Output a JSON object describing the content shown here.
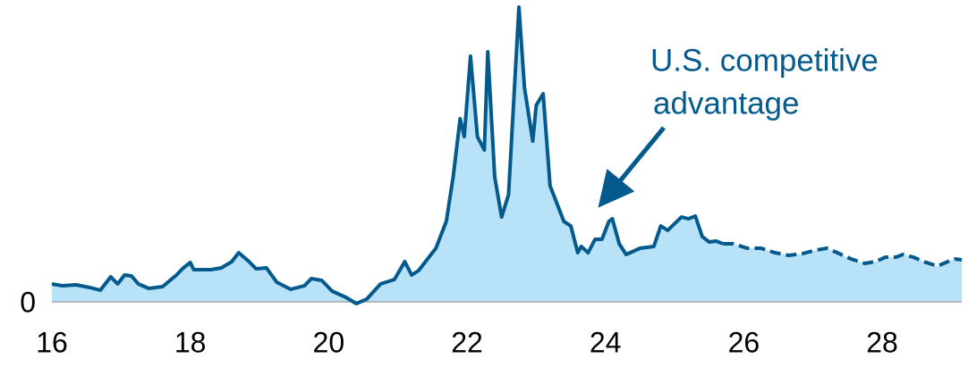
{
  "chart_data": {
    "type": "area",
    "annotation": [
      "U.S. competitive",
      "advantage"
    ],
    "xlim": [
      16,
      29.15
    ],
    "xticks": [
      16,
      18,
      20,
      22,
      24,
      26,
      28
    ],
    "ylim": [
      0,
      33
    ],
    "yticks": [
      0
    ],
    "line_color": "#045a8d",
    "fill_color": "#b8e2f8",
    "series": [
      {
        "color": "#045a8d",
        "dashed": false,
        "x": [
          16.0,
          16.15,
          16.35,
          16.55,
          16.7,
          16.85,
          16.95,
          17.05,
          17.15,
          17.25,
          17.4,
          17.6,
          17.8,
          17.9,
          18.0,
          18.05,
          18.3,
          18.45,
          18.6,
          18.7,
          18.85,
          18.95,
          19.1,
          19.25,
          19.45,
          19.65,
          19.75,
          19.9,
          20.05,
          20.25,
          20.4,
          20.55,
          20.75,
          20.95,
          21.1,
          21.2,
          21.3,
          21.45,
          21.55,
          21.7,
          21.8,
          21.9,
          21.96,
          22.05,
          22.15,
          22.25,
          22.3,
          22.4,
          22.5,
          22.6,
          22.75,
          22.83,
          22.95,
          23.0,
          23.1,
          23.2,
          23.4,
          23.5,
          23.6,
          23.65,
          23.75,
          23.85,
          23.95,
          24.05,
          24.1,
          24.2,
          24.3,
          24.5,
          24.7,
          24.8,
          24.9,
          25.1,
          25.2,
          25.3,
          25.4,
          25.5,
          25.6,
          25.7
        ],
        "values": [
          2.0,
          1.8,
          1.9,
          1.6,
          1.3,
          2.8,
          2.0,
          3.0,
          2.9,
          2.0,
          1.5,
          1.7,
          3.0,
          3.8,
          4.4,
          3.6,
          3.6,
          3.8,
          4.5,
          5.5,
          4.5,
          3.7,
          3.8,
          2.2,
          1.4,
          1.8,
          2.6,
          2.4,
          1.2,
          0.5,
          -0.2,
          0.3,
          2.0,
          2.5,
          4.5,
          3.0,
          3.5,
          5.0,
          6.0,
          9.0,
          14.0,
          20.5,
          18.5,
          27.5,
          18.5,
          17.0,
          28.0,
          14.0,
          9.5,
          12.0,
          33.0,
          24.0,
          18.0,
          22.0,
          23.3,
          13.0,
          9.0,
          8.5,
          5.5,
          6.2,
          5.5,
          7.0,
          7.0,
          9.0,
          9.3,
          6.5,
          5.3,
          6.0,
          6.2,
          8.5,
          8.0,
          9.5,
          9.3,
          9.6,
          7.3,
          6.7,
          6.8,
          6.5
        ]
      },
      {
        "color": "#045a8d",
        "dashed": true,
        "x": [
          25.7,
          25.85,
          26.05,
          26.25,
          26.45,
          26.65,
          26.85,
          27.05,
          27.2,
          27.35,
          27.55,
          27.75,
          27.9,
          28.05,
          28.2,
          28.3,
          28.45,
          28.6,
          28.8,
          28.95,
          29.05,
          29.15
        ],
        "values": [
          6.5,
          6.5,
          6.0,
          6.0,
          5.5,
          5.2,
          5.4,
          5.8,
          6.0,
          5.5,
          4.8,
          4.3,
          4.5,
          5.0,
          5.0,
          5.3,
          5.0,
          4.5,
          4.0,
          4.5,
          4.8,
          4.7
        ]
      }
    ]
  }
}
